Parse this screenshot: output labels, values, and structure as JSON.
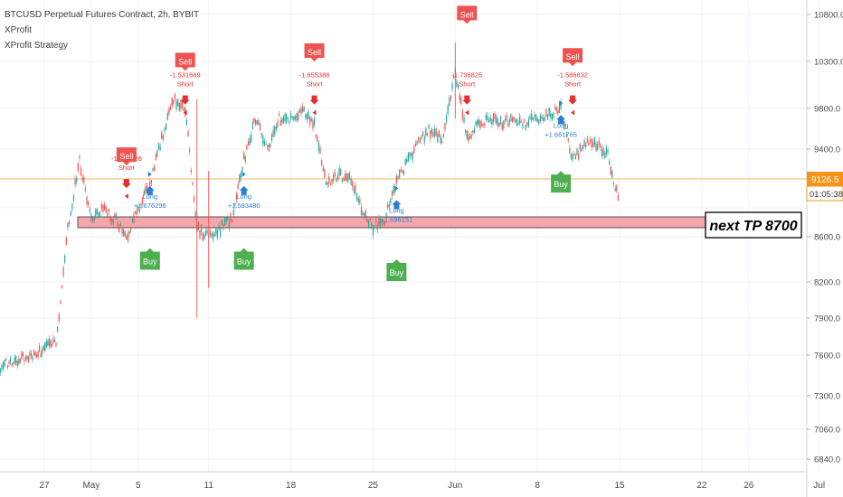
{
  "chart_data": {
    "type": "candlestick",
    "title": "BTCUSD Perpetual Futures Contract, 2h, BYBIT",
    "indicators": [
      "XProfit",
      "XProfit Strategy"
    ],
    "y_axis": {
      "position": "right",
      "ticks": [
        6840.0,
        7060.0,
        7300.0,
        7600.0,
        7900.0,
        8200.0,
        8600.0,
        9400.0,
        9800.0,
        10300.0,
        10800.0
      ],
      "tick_labels": [
        "6840.0",
        "7060.0",
        "7300.0",
        "7600.0",
        "7900.0",
        "8200.0",
        "8600.0",
        "9400.0",
        "9800.0",
        "10300.0",
        "10800.0"
      ]
    },
    "x_axis": {
      "tick_labels": [
        "27",
        "May",
        "5",
        "11",
        "18",
        "25",
        "Jun",
        "8",
        "15",
        "22",
        "26",
        "Jul"
      ]
    },
    "current_price": {
      "value": "9126.5",
      "countdown": "01:05:38",
      "color": "#f7931a"
    },
    "price_path": [
      {
        "x": "Apr 22",
        "y": 7060
      },
      {
        "x": "Apr 23",
        "y": 7500
      },
      {
        "x": "Apr 24",
        "y": 7550
      },
      {
        "x": "Apr 26",
        "y": 7600
      },
      {
        "x": "Apr 28",
        "y": 7700
      },
      {
        "x": "Apr 29",
        "y": 8700
      },
      {
        "x": "Apr 30",
        "y": 9300
      },
      {
        "x": "May 1",
        "y": 8800
      },
      {
        "x": "May 2",
        "y": 8900
      },
      {
        "x": "May 3",
        "y": 8800
      },
      {
        "x": "May 4",
        "y": 8600
      },
      {
        "x": "May 5",
        "y": 8900
      },
      {
        "x": "May 6",
        "y": 9100
      },
      {
        "x": "May 7",
        "y": 9500
      },
      {
        "x": "May 8",
        "y": 9900
      },
      {
        "x": "May 9",
        "y": 9800
      },
      {
        "x": "May 10",
        "y": 8700
      },
      {
        "x": "May 11",
        "y": 8600
      },
      {
        "x": "May 12",
        "y": 8700
      },
      {
        "x": "May 13",
        "y": 8800
      },
      {
        "x": "May 14",
        "y": 9300
      },
      {
        "x": "May 15",
        "y": 9700
      },
      {
        "x": "May 16",
        "y": 9400
      },
      {
        "x": "May 17",
        "y": 9700
      },
      {
        "x": "May 18",
        "y": 9700
      },
      {
        "x": "May 19",
        "y": 9800
      },
      {
        "x": "May 20",
        "y": 9650
      },
      {
        "x": "May 21",
        "y": 9100
      },
      {
        "x": "May 22",
        "y": 9150
      },
      {
        "x": "May 23",
        "y": 9150
      },
      {
        "x": "May 24",
        "y": 8900
      },
      {
        "x": "May 25",
        "y": 8700
      },
      {
        "x": "May 26",
        "y": 8800
      },
      {
        "x": "May 27",
        "y": 9100
      },
      {
        "x": "May 28",
        "y": 9300
      },
      {
        "x": "May 29",
        "y": 9500
      },
      {
        "x": "May 30",
        "y": 9600
      },
      {
        "x": "May 31",
        "y": 9500
      },
      {
        "x": "Jun 1",
        "y": 10200
      },
      {
        "x": "Jun 2",
        "y": 9500
      },
      {
        "x": "Jun 3",
        "y": 9650
      },
      {
        "x": "Jun 4",
        "y": 9700
      },
      {
        "x": "Jun 5",
        "y": 9650
      },
      {
        "x": "Jun 6",
        "y": 9700
      },
      {
        "x": "Jun 7",
        "y": 9650
      },
      {
        "x": "Jun 8",
        "y": 9700
      },
      {
        "x": "Jun 9",
        "y": 9750
      },
      {
        "x": "Jun 10",
        "y": 9800
      },
      {
        "x": "Jun 11",
        "y": 9300
      },
      {
        "x": "Jun 12",
        "y": 9450
      },
      {
        "x": "Jun 13",
        "y": 9450
      },
      {
        "x": "Jun 14",
        "y": 9350
      },
      {
        "x": "Jun 15",
        "y": 8950
      }
    ],
    "support_zone": {
      "y_low": 8650,
      "y_high": 8760,
      "color": "#f4a6ab"
    },
    "annotation": {
      "text": "next TP 8700"
    },
    "signals": [
      {
        "label": "Sell",
        "kind": "sell",
        "x": "May 4",
        "y": 9250
      },
      {
        "label": "Buy",
        "kind": "buy",
        "x": "May 6",
        "y": 8500
      },
      {
        "label": "Sell",
        "kind": "sell",
        "x": "May 9",
        "y": 10200
      },
      {
        "label": "Buy",
        "kind": "buy",
        "x": "May 14",
        "y": 8500
      },
      {
        "label": "Sell",
        "kind": "sell",
        "x": "May 20",
        "y": 10300
      },
      {
        "label": "Buy",
        "kind": "buy",
        "x": "May 27",
        "y": 8400
      },
      {
        "label": "Sell",
        "kind": "sell",
        "x": "Jun 2",
        "y": 10700
      },
      {
        "label": "Buy",
        "kind": "buy",
        "x": "Jun 10",
        "y": 9200
      },
      {
        "label": "Sell",
        "kind": "sell",
        "x": "Jun 11",
        "y": 10250
      }
    ],
    "trades": [
      {
        "side": "Short",
        "value": "-1.803828",
        "color": "#e0312f",
        "x": "May 4",
        "y": 9100
      },
      {
        "side": "Long",
        "value": "+1.676296",
        "color": "#2a7fd4",
        "x": "May 6",
        "y": 9050
      },
      {
        "side": "Short",
        "value": "-1.531669",
        "color": "#e0312f",
        "x": "May 9",
        "y": 9900
      },
      {
        "side": "Long",
        "value": "+1.593486",
        "color": "#2a7fd4",
        "x": "May 14",
        "y": 9050
      },
      {
        "side": "Short",
        "value": "-1.655388",
        "color": "#e0312f",
        "x": "May 20",
        "y": 9900
      },
      {
        "side": "Long",
        "value": "+1.696151",
        "color": "#2a7fd4",
        "x": "May 27",
        "y": 8950
      },
      {
        "side": "Short",
        "value": "-1.736825",
        "color": "#e0312f",
        "x": "Jun 2",
        "y": 9900
      },
      {
        "side": "Long",
        "value": "+1.661765",
        "color": "#2a7fd4",
        "x": "Jun 10",
        "y": 9700
      },
      {
        "side": "Short",
        "value": "-1.586632",
        "color": "#e0312f",
        "x": "Jun 11",
        "y": 9900
      }
    ],
    "colors": {
      "up": "#26a69a",
      "down": "#ef5350",
      "buy": "#4caf50",
      "sell": "#ef5350"
    }
  }
}
